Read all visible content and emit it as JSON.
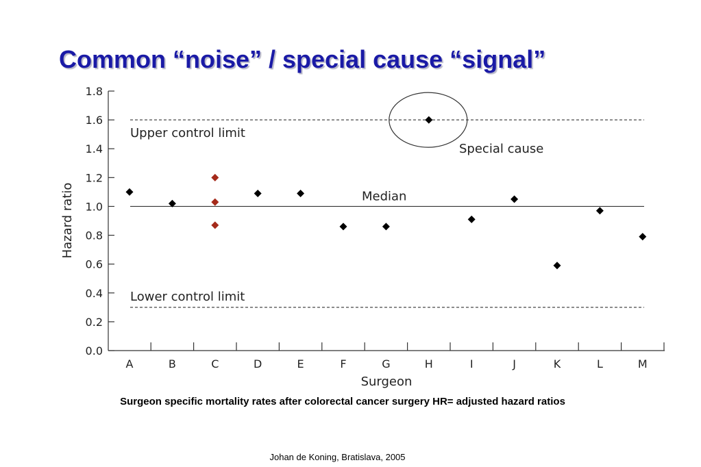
{
  "slide": {
    "title": "Common “noise” / special cause “signal”",
    "caption": "Surgeon specific mortality rates after colorectal cancer surgery HR= adjusted hazard ratios",
    "footer": "Johan de Koning, Bratislava, 2005"
  },
  "chart_data": {
    "type": "scatter",
    "title": "",
    "xlabel": "Surgeon",
    "ylabel": "Hazard ratio",
    "categories": [
      "A",
      "B",
      "C",
      "D",
      "E",
      "F",
      "G",
      "H",
      "I",
      "J",
      "K",
      "L",
      "M"
    ],
    "ylim": [
      0,
      1.8
    ],
    "yticks": [
      "0.0",
      "0.2",
      "0.4",
      "0.6",
      "0.8",
      "1.0",
      "1.2",
      "1.4",
      "1.6",
      "1.8"
    ],
    "points": [
      {
        "x": "A",
        "y": 1.1,
        "color": "#000000"
      },
      {
        "x": "B",
        "y": 1.02,
        "color": "#000000"
      },
      {
        "x": "C",
        "y": 1.2,
        "color": "#a52a1a"
      },
      {
        "x": "C",
        "y": 1.03,
        "color": "#a52a1a"
      },
      {
        "x": "C",
        "y": 0.87,
        "color": "#a52a1a"
      },
      {
        "x": "D",
        "y": 1.09,
        "color": "#000000"
      },
      {
        "x": "E",
        "y": 1.09,
        "color": "#000000"
      },
      {
        "x": "F",
        "y": 0.86,
        "color": "#000000"
      },
      {
        "x": "G",
        "y": 0.86,
        "color": "#000000"
      },
      {
        "x": "H",
        "y": 1.6,
        "color": "#000000"
      },
      {
        "x": "I",
        "y": 0.91,
        "color": "#000000"
      },
      {
        "x": "J",
        "y": 1.05,
        "color": "#000000"
      },
      {
        "x": "K",
        "y": 0.59,
        "color": "#000000"
      },
      {
        "x": "L",
        "y": 0.97,
        "color": "#000000"
      },
      {
        "x": "M",
        "y": 0.79,
        "color": "#000000"
      }
    ],
    "reference_lines": [
      {
        "y": 1.6,
        "style": "dashed",
        "label": "Upper control limit"
      },
      {
        "y": 1.0,
        "style": "solid",
        "label": "Median"
      },
      {
        "y": 0.3,
        "style": "dashed",
        "label": "Lower control limit"
      }
    ],
    "annotations": [
      {
        "text": "Special cause",
        "target": "H",
        "shape": "ellipse"
      }
    ],
    "grid": false,
    "legend": "none"
  }
}
